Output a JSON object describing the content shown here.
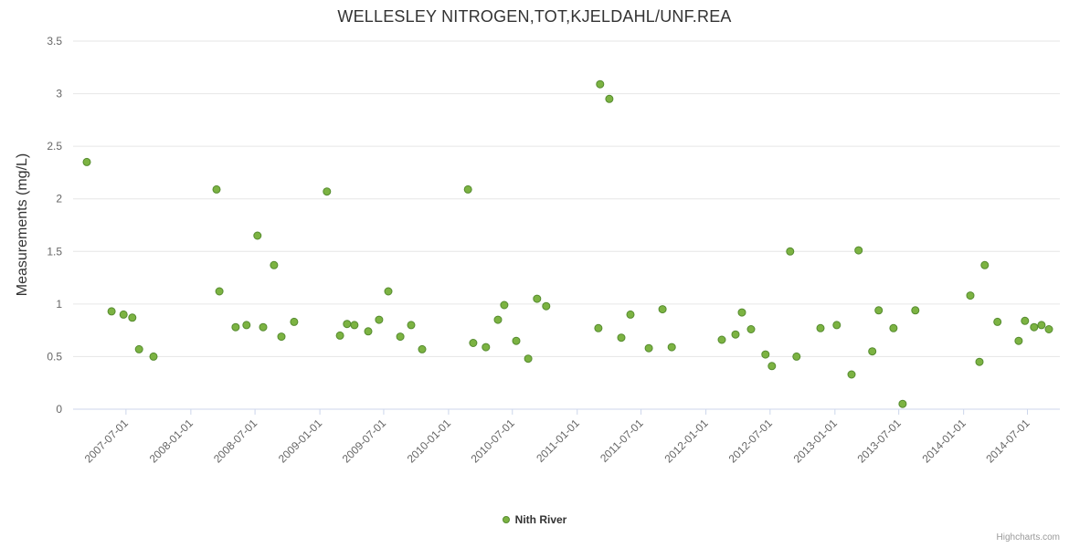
{
  "credits": "Highcharts.com",
  "chart_data": {
    "type": "scatter",
    "title": "WELLESLEY NITROGEN,TOT,KJELDAHL/UNF.REA",
    "xlabel": "",
    "ylabel": "Measurements (mg/L)",
    "ylim": [
      0,
      3.5
    ],
    "y_ticks": [
      0,
      0.5,
      1,
      1.5,
      2,
      2.5,
      3,
      3.5
    ],
    "x_range": [
      "2007-02-01",
      "2014-10-01"
    ],
    "x_ticks": [
      "2007-07-01",
      "2008-01-01",
      "2008-07-01",
      "2009-01-01",
      "2009-07-01",
      "2010-01-01",
      "2010-07-01",
      "2011-01-01",
      "2011-07-01",
      "2012-01-01",
      "2012-07-01",
      "2013-01-01",
      "2013-07-01",
      "2014-01-01",
      "2014-07-01"
    ],
    "grid": "horizontal",
    "legend_position": "bottom-center",
    "colors": {
      "background": "#ffffff",
      "grid": "#e6e6e6",
      "axis_line": "#ccd6eb",
      "axis_label": "#666666",
      "title": "#333333",
      "legend_label": "#333333",
      "credits": "#999999"
    },
    "series": [
      {
        "name": "Nith River",
        "color": "#7cb342",
        "border_color": "#558b2f",
        "points": [
          [
            "2007-03-12",
            2.35
          ],
          [
            "2007-05-21",
            0.93
          ],
          [
            "2007-06-24",
            0.9
          ],
          [
            "2007-07-19",
            0.87
          ],
          [
            "2007-08-07",
            0.57
          ],
          [
            "2007-09-17",
            0.5
          ],
          [
            "2008-03-14",
            2.09
          ],
          [
            "2008-03-22",
            1.12
          ],
          [
            "2008-05-07",
            0.78
          ],
          [
            "2008-06-07",
            0.8
          ],
          [
            "2008-07-08",
            1.65
          ],
          [
            "2008-07-24",
            0.78
          ],
          [
            "2008-08-24",
            1.37
          ],
          [
            "2008-09-14",
            0.69
          ],
          [
            "2008-10-20",
            0.83
          ],
          [
            "2009-01-21",
            2.07
          ],
          [
            "2009-02-27",
            0.7
          ],
          [
            "2009-03-19",
            0.81
          ],
          [
            "2009-04-09",
            0.8
          ],
          [
            "2009-05-18",
            0.74
          ],
          [
            "2009-06-18",
            0.85
          ],
          [
            "2009-07-14",
            1.12
          ],
          [
            "2009-08-17",
            0.69
          ],
          [
            "2009-09-17",
            0.8
          ],
          [
            "2009-10-18",
            0.57
          ],
          [
            "2010-02-25",
            2.09
          ],
          [
            "2010-03-12",
            0.63
          ],
          [
            "2010-04-17",
            0.59
          ],
          [
            "2010-05-21",
            0.85
          ],
          [
            "2010-06-08",
            0.99
          ],
          [
            "2010-07-12",
            0.65
          ],
          [
            "2010-08-15",
            0.48
          ],
          [
            "2010-09-09",
            1.05
          ],
          [
            "2010-10-05",
            0.98
          ],
          [
            "2011-03-02",
            0.77
          ],
          [
            "2011-03-07",
            3.09
          ],
          [
            "2011-04-02",
            2.95
          ],
          [
            "2011-05-06",
            0.68
          ],
          [
            "2011-06-01",
            0.9
          ],
          [
            "2011-07-23",
            0.58
          ],
          [
            "2011-08-31",
            0.95
          ],
          [
            "2011-09-26",
            0.59
          ],
          [
            "2012-02-15",
            0.66
          ],
          [
            "2012-03-25",
            0.71
          ],
          [
            "2012-04-12",
            0.92
          ],
          [
            "2012-05-08",
            0.76
          ],
          [
            "2012-06-18",
            0.52
          ],
          [
            "2012-07-06",
            0.41
          ],
          [
            "2012-08-27",
            1.5
          ],
          [
            "2012-09-14",
            0.5
          ],
          [
            "2012-11-21",
            0.77
          ],
          [
            "2013-01-06",
            0.8
          ],
          [
            "2013-02-17",
            0.33
          ],
          [
            "2013-03-09",
            1.51
          ],
          [
            "2013-04-17",
            0.55
          ],
          [
            "2013-05-05",
            0.94
          ],
          [
            "2013-06-16",
            0.77
          ],
          [
            "2013-07-12",
            0.05
          ],
          [
            "2013-08-17",
            0.94
          ],
          [
            "2014-01-20",
            1.08
          ],
          [
            "2014-02-15",
            0.45
          ],
          [
            "2014-03-02",
            1.37
          ],
          [
            "2014-04-07",
            0.83
          ],
          [
            "2014-06-06",
            0.65
          ],
          [
            "2014-06-24",
            0.84
          ],
          [
            "2014-07-20",
            0.78
          ],
          [
            "2014-08-10",
            0.8
          ],
          [
            "2014-08-31",
            0.76
          ]
        ]
      }
    ]
  }
}
